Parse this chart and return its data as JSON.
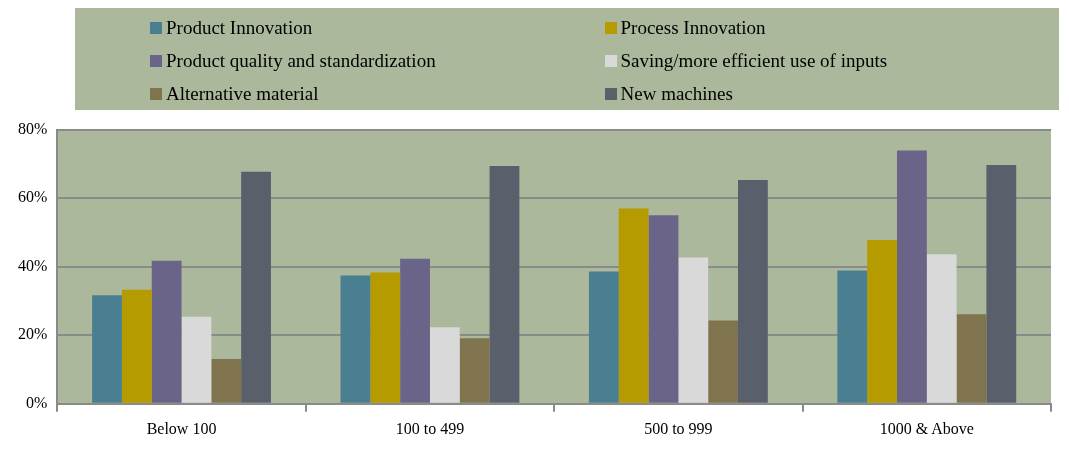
{
  "chart_data": {
    "type": "bar",
    "categories": [
      "Below 100",
      "100 to 499",
      "500 to 999",
      "1000 & Above"
    ],
    "series": [
      {
        "name": "Product Innovation",
        "color": "#4a7f92",
        "values": [
          31.7,
          37.4,
          38.6,
          38.9
        ]
      },
      {
        "name": "Process Innovation",
        "color": "#b59a00",
        "values": [
          33.3,
          38.3,
          57.0,
          47.8
        ]
      },
      {
        "name": "Product quality and standardization",
        "color": "#6a6488",
        "values": [
          41.7,
          42.3,
          55.0,
          73.9
        ]
      },
      {
        "name": "Saving/more efficient use of inputs",
        "color": "#d9d9d9",
        "values": [
          25.4,
          22.3,
          42.7,
          43.6
        ]
      },
      {
        "name": "Alternative material",
        "color": "#80744f",
        "values": [
          13.1,
          19.1,
          24.3,
          26.1
        ]
      },
      {
        "name": "New machines",
        "color": "#5a606b",
        "values": [
          67.7,
          69.4,
          65.3,
          69.7
        ]
      }
    ],
    "ylim": [
      0,
      80
    ],
    "yticks": [
      {
        "value": 0,
        "label": "0%"
      },
      {
        "value": 20,
        "label": "20%"
      },
      {
        "value": 40,
        "label": "40%"
      },
      {
        "value": 60,
        "label": "60%"
      },
      {
        "value": 80,
        "label": "80%"
      }
    ],
    "grid": "y",
    "legend": "top"
  }
}
